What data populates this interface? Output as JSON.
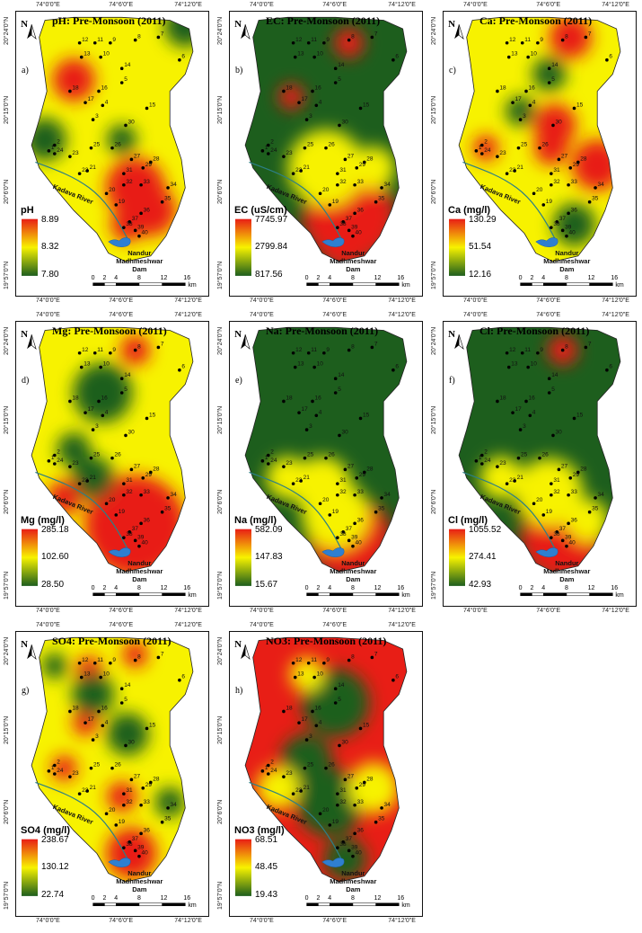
{
  "coords": {
    "top": [
      "74°0'0\"E",
      "74°6'0\"E",
      "74°12'0\"E"
    ],
    "left": [
      "20°24'0\"N",
      "20°15'0\"N",
      "20°6'0\"N",
      "19°57'0\"N"
    ]
  },
  "north_label": "N",
  "river_label": "Kadava River",
  "dam_label_line1": "Nandur",
  "dam_label_line2": "Madhmeshwar",
  "dam_label_line3": "Dam",
  "scale": {
    "ticks": [
      "0",
      "2",
      "4",
      "8",
      "12",
      "16"
    ],
    "unit": "km"
  },
  "stations": [
    "1",
    "2",
    "3",
    "4",
    "5",
    "6",
    "7",
    "8",
    "9",
    "10",
    "11",
    "12",
    "13",
    "14",
    "15",
    "16",
    "17",
    "18",
    "19",
    "20",
    "21",
    "22",
    "23",
    "24",
    "25",
    "26",
    "27",
    "28",
    "29",
    "30",
    "31",
    "32",
    "33",
    "34",
    "35",
    "36",
    "37",
    "38",
    "39",
    "40"
  ],
  "panels": [
    {
      "letter": "a)",
      "title": "pH: Pre-Monsoon (2011)",
      "legend_title": "pH",
      "legend_max": "8.89",
      "legend_mid": "8.32",
      "legend_min": "7.80"
    },
    {
      "letter": "b)",
      "title": "EC: Pre-Monsoon (2011)",
      "legend_title": "EC (uS/cm)",
      "legend_max": "7745.97",
      "legend_mid": "2799.84",
      "legend_min": "817.56"
    },
    {
      "letter": "c)",
      "title": "Ca: Pre-Monsoon (2011)",
      "legend_title": "Ca (mg/l)",
      "legend_max": "130.29",
      "legend_mid": "51.54",
      "legend_min": "12.16"
    },
    {
      "letter": "d)",
      "title": "Mg: Pre-Monsoon (2011)",
      "legend_title": "Mg (mg/l)",
      "legend_max": "285.18",
      "legend_mid": "102.60",
      "legend_min": "28.50"
    },
    {
      "letter": "e)",
      "title": "Na: Pre-Monsoon (2011)",
      "legend_title": "Na (mg/l)",
      "legend_max": "582.09",
      "legend_mid": "147.83",
      "legend_min": "15.67"
    },
    {
      "letter": "f)",
      "title": "Cl: Pre-Monsoon (2011)",
      "legend_title": "Cl (mg/l)",
      "legend_max": "1055.52",
      "legend_mid": "274.41",
      "legend_min": "42.93"
    },
    {
      "letter": "g)",
      "title": "SO4: Pre-Monsoon (2011)",
      "legend_title": "SO4 (mg/l)",
      "legend_max": "238.67",
      "legend_mid": "130.12",
      "legend_min": "22.74"
    },
    {
      "letter": "h)",
      "title": "NO3: Pre-Monsoon (2011)",
      "legend_title": "NO3 (mg/l)",
      "legend_max": "68.51",
      "legend_mid": "48.45",
      "legend_min": "19.43"
    }
  ],
  "colors": {
    "high": "#e81e16",
    "mid": "#f7f200",
    "low": "#1d5e1d",
    "river": "#2c7f86",
    "dam": "#2f7fd0"
  }
}
